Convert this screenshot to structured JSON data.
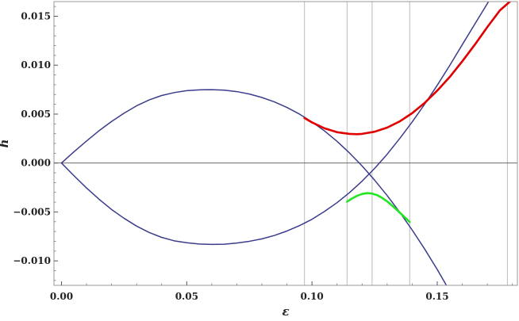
{
  "chart_data": {
    "type": "line",
    "title": "",
    "xlabel": "ε",
    "ylabel": "h",
    "xlim": [
      -0.003,
      0.182
    ],
    "ylim": [
      -0.0125,
      0.0165
    ],
    "x_ticks": [
      0.0,
      0.05,
      0.1,
      0.15
    ],
    "x_tick_labels": [
      "0.00",
      "0.05",
      "0.10",
      "0.15"
    ],
    "y_ticks": [
      -0.01,
      -0.005,
      0.0,
      0.005,
      0.01,
      0.015
    ],
    "y_tick_labels": [
      "−0.010",
      "−0.005",
      "0.000",
      "0.005",
      "0.010",
      "0.015"
    ],
    "vertical_lines": [
      0.097,
      0.114,
      0.124,
      0.139,
      0.178
    ],
    "zero_line": 0,
    "grid": false,
    "colors": {
      "frame": "#999999",
      "navy": "#3c3c8c",
      "red": "#e00000",
      "green": "#22e622",
      "gridline": "#bbbbbb",
      "zero": "#555555"
    },
    "series": [
      {
        "color": "navy",
        "x": [
          0.0,
          0.005,
          0.01,
          0.015,
          0.02,
          0.025,
          0.03,
          0.035,
          0.04,
          0.045,
          0.05,
          0.055,
          0.06,
          0.065,
          0.07,
          0.075,
          0.08,
          0.085,
          0.09,
          0.095,
          0.1,
          0.105,
          0.11,
          0.115,
          0.12,
          0.125,
          0.13,
          0.135,
          0.14,
          0.145,
          0.15,
          0.155,
          0.157
        ],
        "values": [
          0.0,
          0.00115,
          0.00225,
          0.0033,
          0.00425,
          0.0051,
          0.00585,
          0.00645,
          0.0069,
          0.0072,
          0.0074,
          0.00748,
          0.0075,
          0.00745,
          0.0073,
          0.00705,
          0.0067,
          0.00625,
          0.00568,
          0.005,
          0.0042,
          0.00328,
          0.00222,
          0.00102,
          -0.0003,
          -0.00175,
          -0.00332,
          -0.00502,
          -0.00685,
          -0.0088,
          -0.01088,
          -0.0131,
          -0.014
        ]
      },
      {
        "color": "navy",
        "x": [
          0.0,
          0.005,
          0.01,
          0.015,
          0.02,
          0.025,
          0.03,
          0.035,
          0.04,
          0.045,
          0.05,
          0.055,
          0.06,
          0.065,
          0.07,
          0.075,
          0.08,
          0.085,
          0.09,
          0.095,
          0.1,
          0.105,
          0.11,
          0.115,
          0.12,
          0.125,
          0.13,
          0.135,
          0.14,
          0.145,
          0.15,
          0.155,
          0.16,
          0.165,
          0.17,
          0.175,
          0.18
        ],
        "values": [
          0.0,
          -0.0013,
          -0.00255,
          -0.0037,
          -0.00475,
          -0.00565,
          -0.00645,
          -0.0071,
          -0.0076,
          -0.00795,
          -0.00815,
          -0.00828,
          -0.00832,
          -0.0083,
          -0.00818,
          -0.008,
          -0.00775,
          -0.0074,
          -0.00695,
          -0.0064,
          -0.00575,
          -0.00495,
          -0.00405,
          -0.00302,
          -0.00185,
          -0.00055,
          0.0009,
          0.0025,
          0.0042,
          0.00602,
          0.00795,
          0.00998,
          0.0121,
          0.0142,
          0.0163,
          0.0185,
          0.0207
        ]
      },
      {
        "color": "red",
        "x": [
          0.097,
          0.1,
          0.105,
          0.11,
          0.115,
          0.118,
          0.12,
          0.125,
          0.13,
          0.135,
          0.14,
          0.145,
          0.15,
          0.155,
          0.16,
          0.165,
          0.17,
          0.175,
          0.179
        ],
        "values": [
          0.0046,
          0.00415,
          0.00355,
          0.00315,
          0.00298,
          0.00295,
          0.00298,
          0.0032,
          0.00362,
          0.00425,
          0.0051,
          0.00615,
          0.0074,
          0.0088,
          0.0104,
          0.0121,
          0.0139,
          0.0156,
          0.0165
        ]
      },
      {
        "color": "green",
        "x": [
          0.114,
          0.116,
          0.118,
          0.12,
          0.122,
          0.124,
          0.126,
          0.128,
          0.13,
          0.132,
          0.134,
          0.136,
          0.138,
          0.139
        ],
        "values": [
          -0.00395,
          -0.00362,
          -0.00335,
          -0.00316,
          -0.00308,
          -0.00312,
          -0.00328,
          -0.00356,
          -0.00392,
          -0.00435,
          -0.00482,
          -0.0053,
          -0.00578,
          -0.00602
        ]
      }
    ]
  }
}
